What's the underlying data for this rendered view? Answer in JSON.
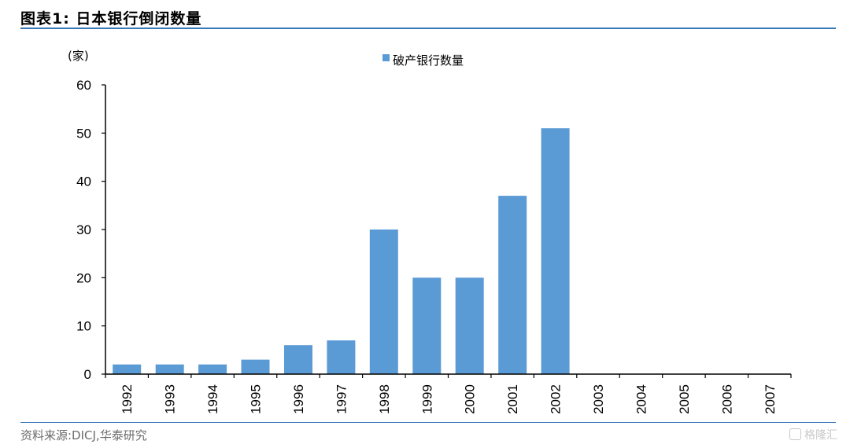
{
  "header": {
    "title": "图表1:  日本银行倒闭数量"
  },
  "footer": {
    "source": "资料来源:DICJ,华泰研究",
    "watermark": "格隆汇"
  },
  "colors": {
    "bar": "#5b9bd5",
    "rule": "#3b78b7"
  },
  "chart_data": {
    "type": "bar",
    "unit_label": "(家)",
    "categories": [
      "1992",
      "1993",
      "1994",
      "1995",
      "1996",
      "1997",
      "1998",
      "1999",
      "2000",
      "2001",
      "2002",
      "2003",
      "2004",
      "2005",
      "2006",
      "2007"
    ],
    "series": [
      {
        "name": "破产银行数量",
        "values": [
          2,
          2,
          2,
          3,
          6,
          7,
          30,
          20,
          20,
          37,
          51,
          0,
          0,
          0,
          0,
          0
        ]
      }
    ],
    "ylim": [
      0,
      60
    ],
    "yticks": [
      0,
      10,
      20,
      30,
      40,
      50,
      60
    ],
    "grid": false,
    "legend": "top-center"
  }
}
